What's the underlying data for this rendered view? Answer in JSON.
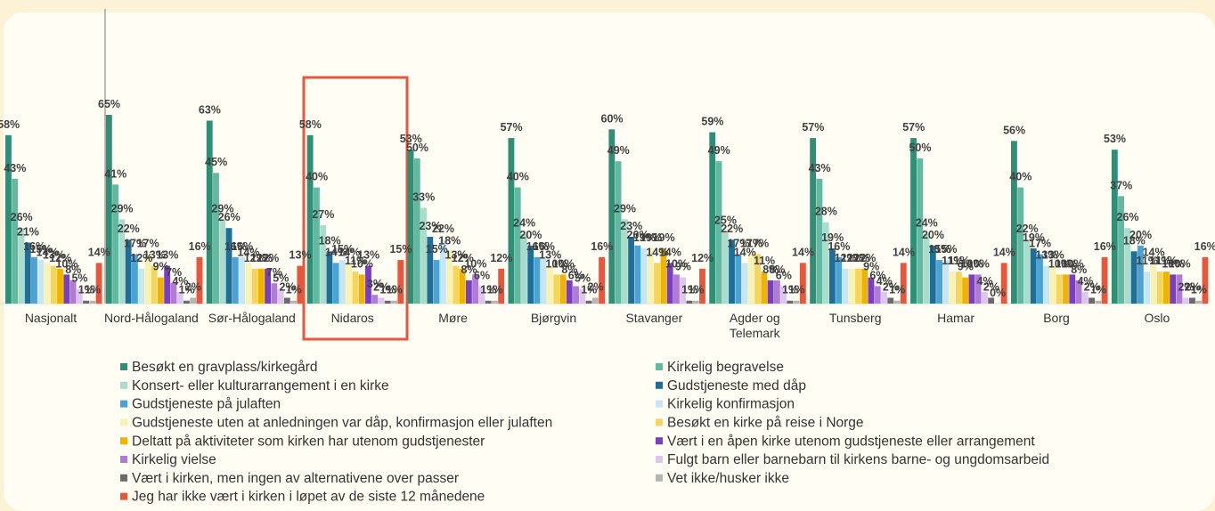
{
  "chart_data": {
    "type": "bar",
    "categories": [
      "Nasjonalt",
      "Nord-Hålogaland",
      "Sør-Hålogaland",
      "Nidaros",
      "Møre",
      "Bjørgvin",
      "Stavanger",
      "Agder og Telemark",
      "Tunsberg",
      "Hamar",
      "Borg",
      "Oslo"
    ],
    "ylim": [
      0,
      65
    ],
    "series": [
      {
        "name": "Besøkt en gravplass/kirkegård",
        "color": "#2f8f76",
        "values": [
          58,
          65,
          63,
          58,
          53,
          57,
          60,
          59,
          57,
          57,
          56,
          53
        ],
        "value_labels": [
          "58%",
          "65%",
          "63%",
          "58%",
          "53%",
          "57%",
          "60%",
          "59%",
          "57%",
          "57%",
          "56%",
          "53%"
        ]
      },
      {
        "name": "Kirkelig begravelse",
        "color": "#62b9a2",
        "values": [
          43,
          41,
          45,
          40,
          50,
          40,
          49,
          49,
          43,
          50,
          40,
          37
        ],
        "value_labels": [
          "43%",
          "41%",
          "45%",
          "40%",
          "50%",
          "40%",
          "49%",
          "49%",
          "43%",
          "50%",
          "40%",
          "37%"
        ]
      },
      {
        "name": "Konsert- eller kulturarrangement i en kirke",
        "color": "#a9dccb",
        "values": [
          26,
          29,
          29,
          27,
          33,
          24,
          29,
          25,
          28,
          24,
          22,
          26
        ],
        "value_labels": [
          "26%",
          "29%",
          "29%",
          "27%",
          "33%",
          "24%",
          "29%",
          "25%",
          "28%",
          "24%",
          "22%",
          "26%"
        ]
      },
      {
        "name": "Gudstjeneste med dåp",
        "color": "#1f6e98",
        "values": [
          21,
          22,
          26,
          18,
          23,
          20,
          23,
          22,
          19,
          20,
          19,
          18
        ],
        "value_labels": [
          "21%",
          "22%",
          "26%",
          "18%",
          "23%",
          "20%",
          "23%",
          "22%",
          "19%",
          "20%",
          "19%",
          "18%"
        ]
      },
      {
        "name": "Gudstjeneste på julaften",
        "color": "#48a3d6",
        "values": [
          16,
          17,
          16,
          14,
          15,
          16,
          20,
          17,
          16,
          15,
          17,
          20
        ],
        "value_labels": [
          "16%",
          "17%",
          "16%",
          "14%",
          "15%",
          "16%",
          "20%",
          "17%",
          "16%",
          "15%",
          "17%",
          "20%"
        ]
      },
      {
        "name": "Kirkelig konfirmasjon",
        "color": "#c6e6f4",
        "values": [
          15,
          12,
          16,
          15,
          22,
          16,
          19,
          14,
          12,
          15,
          13,
          11
        ],
        "value_labels": [
          "15%",
          "12%",
          "16%",
          "15%",
          "22%",
          "16%",
          "19%",
          "14%",
          "12%",
          "15%",
          "13%",
          "11%"
        ]
      },
      {
        "name": "Gudstjeneste uten at anledningen var dåp, konfirmasjon eller julaften",
        "color": "#f9f2b2",
        "values": [
          14,
          17,
          14,
          14,
          18,
          13,
          19,
          17,
          12,
          11,
          13,
          14
        ],
        "value_labels": [
          "14%",
          "17%",
          "14%",
          "14%",
          "18%",
          "13%",
          "19%",
          "17%",
          "12%",
          "11%",
          "13%",
          "14%"
        ]
      },
      {
        "name": "Besøkt en kirke på reise i Norge",
        "color": "#f5d55c",
        "values": [
          13,
          13,
          12,
          11,
          13,
          10,
          14,
          17,
          12,
          11,
          10,
          11
        ],
        "value_labels": [
          "13%",
          "13%",
          "12%",
          "11%",
          "13%",
          "10%",
          "14%",
          "17%",
          "12%",
          "11%",
          "10%",
          "11%"
        ]
      },
      {
        "name": "Deltatt på aktiviteter som kirken har utenom gudstjenester",
        "color": "#f0b400",
        "values": [
          12,
          9,
          12,
          10,
          12,
          10,
          19,
          11,
          12,
          9,
          10,
          11
        ],
        "value_labels": [
          "12%",
          "9%",
          "12%",
          "10%",
          "12%",
          "10%",
          "19%",
          "11%",
          "12%",
          "9%",
          "10%",
          "11%"
        ]
      },
      {
        "name": "Vært i en åpen kirke utenom gudstjeneste eller arrangement",
        "color": "#7a3fbe",
        "values": [
          10,
          13,
          12,
          13,
          8,
          8,
          14,
          8,
          9,
          10,
          10,
          10
        ],
        "value_labels": [
          "10%",
          "13%",
          "12%",
          "13%",
          "8%",
          "8%",
          "14%",
          "8%",
          "9%",
          "10%",
          "10%",
          "10%"
        ]
      },
      {
        "name": "Kirkelig vielse",
        "color": "#b07bd6",
        "values": [
          8,
          7,
          7,
          3,
          10,
          6,
          10,
          8,
          6,
          10,
          8,
          10
        ],
        "value_labels": [
          "8%",
          "7%",
          "7%",
          "3%",
          "10%",
          "6%",
          "10%",
          "8%",
          "6%",
          "10%",
          "8%",
          "10%"
        ]
      },
      {
        "name": "Fulgt barn eller barnebarn til kirkens barne- og ungdomsarbeid",
        "color": "#dcc6ee",
        "values": [
          5,
          4,
          5,
          2,
          6,
          5,
          9,
          6,
          4,
          4,
          4,
          2
        ],
        "value_labels": [
          "5%",
          "4%",
          "5%",
          "2%",
          "6%",
          "5%",
          "9%",
          "6%",
          "4%",
          "4%",
          "4%",
          "2%"
        ]
      },
      {
        "name": "Vært i kirken, men ingen av alternativene over passer",
        "color": "#6a6a6a",
        "values": [
          1,
          1,
          2,
          1,
          1,
          1,
          1,
          1,
          2,
          2,
          2,
          2
        ],
        "value_labels": [
          "1%",
          "1%",
          "2%",
          "1%",
          "1%",
          "1%",
          "1%",
          "1%",
          "2%",
          "2%",
          "2%",
          "2%"
        ]
      },
      {
        "name": "Vet ikke/husker ikke",
        "color": "#b5b5b5",
        "values": [
          1,
          2,
          1,
          1,
          1,
          2,
          1,
          1,
          1,
          0,
          1,
          1
        ],
        "value_labels": [
          "1%",
          "2%",
          "1%",
          "1%",
          "1%",
          "2%",
          "1%",
          "1%",
          "1%",
          "0%",
          "1%",
          "1%"
        ]
      },
      {
        "name": "Jeg har ikke vært i kirken i løpet av de siste 12 månedene",
        "color": "#e8573c",
        "values": [
          14,
          16,
          13,
          15,
          12,
          16,
          12,
          14,
          14,
          14,
          16,
          16
        ],
        "value_labels": [
          "14%",
          "16%",
          "13%",
          "15%",
          "12%",
          "16%",
          "12%",
          "14%",
          "14%",
          "14%",
          "16%",
          "16%"
        ]
      }
    ]
  }
}
